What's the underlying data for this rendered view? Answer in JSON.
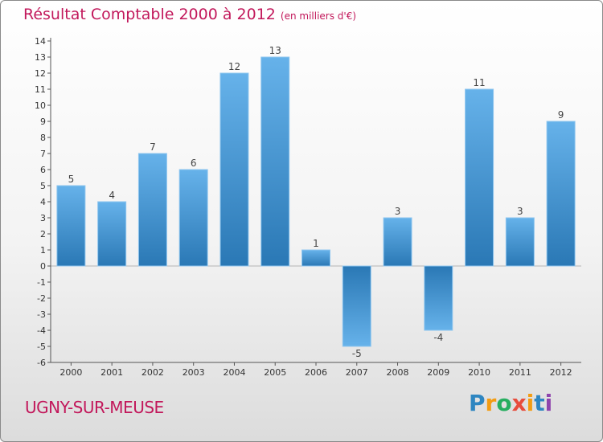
{
  "title": "Résultat Comptable 2000 à 2012",
  "subtitle": "(en milliers d'€)",
  "commune": "UGNY-SUR-MEUSE",
  "logo": {
    "letters": [
      "P",
      "r",
      "o",
      "x",
      "i",
      "t",
      "i"
    ],
    "colors": [
      "#2e86c1",
      "#f39c12",
      "#27ae60",
      "#e74c3c",
      "#f39c12",
      "#2e86c1",
      "#8e44ad"
    ]
  },
  "colors": {
    "bar_top": "#66b2ea",
    "bar_bottom": "#2a78b5",
    "title": "#c2185b"
  },
  "chart_data": {
    "type": "bar",
    "categories": [
      "2000",
      "2001",
      "2002",
      "2003",
      "2004",
      "2005",
      "2006",
      "2007",
      "2008",
      "2009",
      "2010",
      "2011",
      "2012"
    ],
    "values": [
      5,
      4,
      7,
      6,
      12,
      13,
      1,
      -5,
      3,
      -4,
      11,
      3,
      9
    ],
    "ylim": [
      -6,
      14
    ],
    "yticks": [
      -6,
      -5,
      -4,
      -3,
      -2,
      -1,
      0,
      1,
      2,
      3,
      4,
      5,
      6,
      7,
      8,
      9,
      10,
      11,
      12,
      13,
      14
    ],
    "grid": false,
    "legend": "none"
  }
}
